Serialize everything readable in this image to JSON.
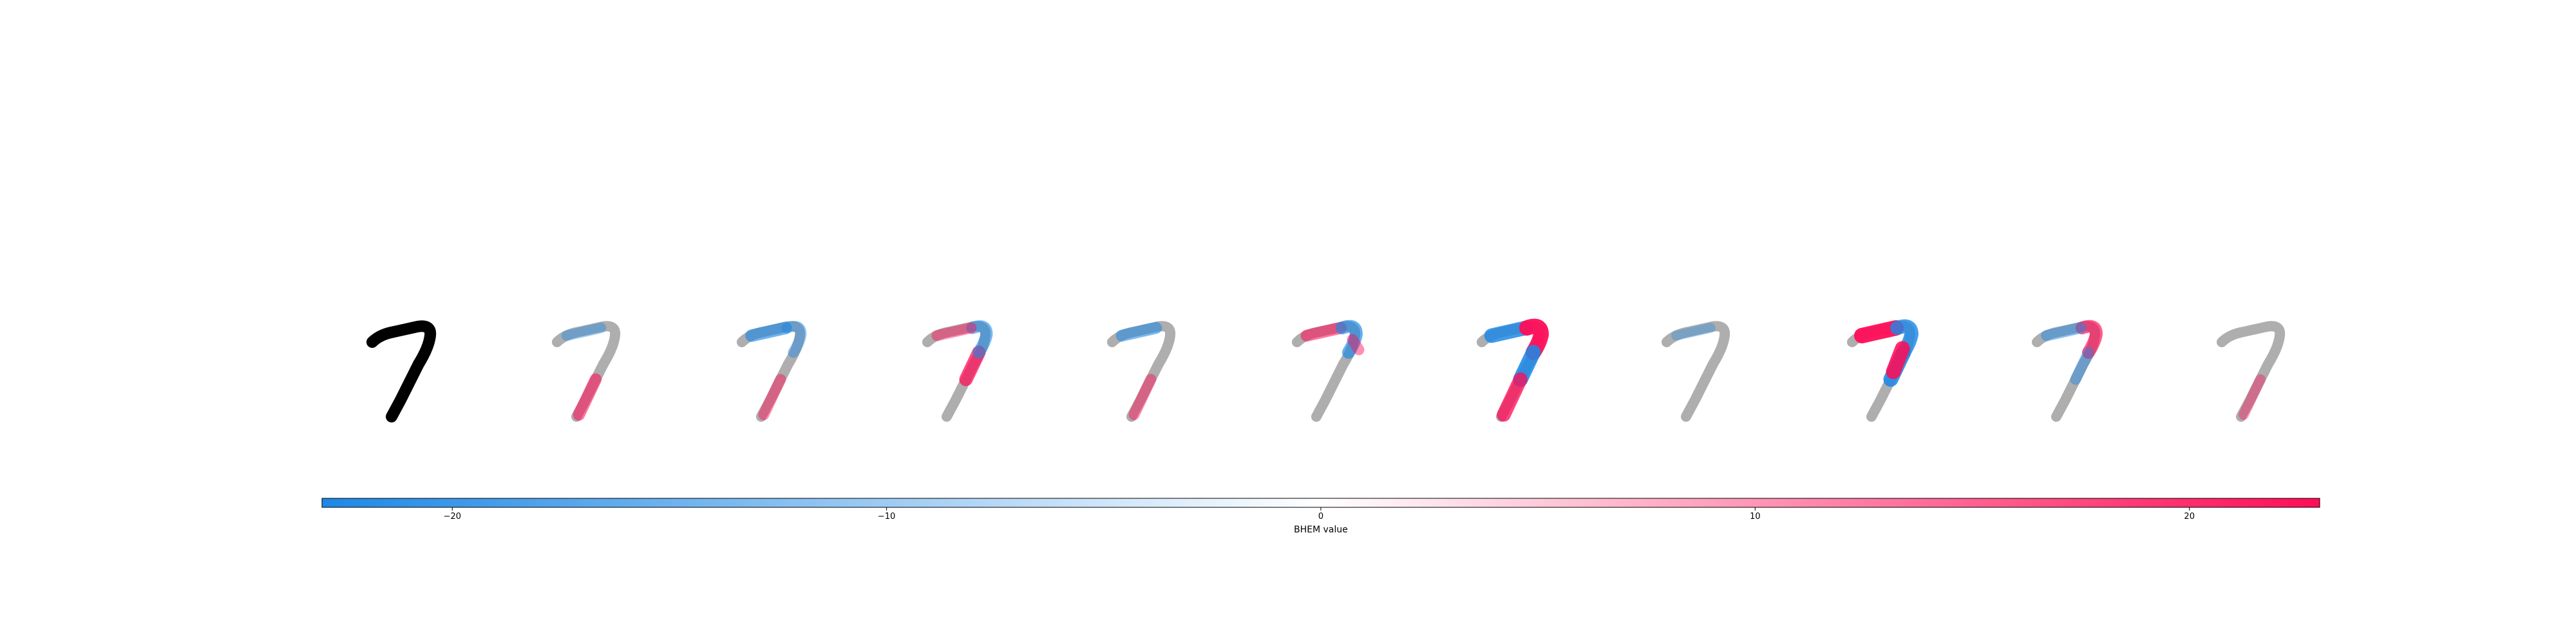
{
  "chart_data": {
    "type": "heatmap",
    "panels": [
      {
        "kind": "input",
        "digit": "7"
      },
      {
        "kind": "attribution",
        "highlights": [
          {
            "part": "stem-lower",
            "sign": 1,
            "strength": 0.45
          },
          {
            "part": "bar-left",
            "sign": -1,
            "strength": 0.25
          }
        ]
      },
      {
        "kind": "attribution",
        "highlights": [
          {
            "part": "bar-left",
            "sign": -1,
            "strength": 0.55
          },
          {
            "part": "hook",
            "sign": -1,
            "strength": 0.3
          },
          {
            "part": "stem-lower",
            "sign": 1,
            "strength": 0.3
          }
        ]
      },
      {
        "kind": "attribution",
        "highlights": [
          {
            "part": "stem-upper",
            "sign": 1,
            "strength": 0.7
          },
          {
            "part": "hook",
            "sign": -1,
            "strength": 0.5
          },
          {
            "part": "bar-left",
            "sign": 1,
            "strength": 0.3
          }
        ]
      },
      {
        "kind": "attribution",
        "highlights": [
          {
            "part": "bar-left",
            "sign": -1,
            "strength": 0.45
          },
          {
            "part": "stem-lower",
            "sign": 1,
            "strength": 0.3
          }
        ]
      },
      {
        "kind": "attribution",
        "highlights": [
          {
            "part": "bar-left",
            "sign": 1,
            "strength": 0.45
          },
          {
            "part": "hook",
            "sign": -1,
            "strength": 0.6
          },
          {
            "part": "right-blob",
            "sign": 1,
            "strength": 0.3
          }
        ]
      },
      {
        "kind": "attribution",
        "highlights": [
          {
            "part": "bar-left",
            "sign": -1,
            "strength": 0.85
          },
          {
            "part": "hook",
            "sign": 1,
            "strength": 1.0
          },
          {
            "part": "stem-upper",
            "sign": -1,
            "strength": 0.9
          },
          {
            "part": "stem-lower",
            "sign": 1,
            "strength": 0.75
          }
        ]
      },
      {
        "kind": "attribution",
        "highlights": [
          {
            "part": "bar-left",
            "sign": -1,
            "strength": 0.15
          }
        ]
      },
      {
        "kind": "attribution",
        "highlights": [
          {
            "part": "bar-left",
            "sign": 1,
            "strength": 1.0
          },
          {
            "part": "hook",
            "sign": -1,
            "strength": 0.8
          },
          {
            "part": "stem-upper",
            "sign": -1,
            "strength": 0.9
          },
          {
            "part": "center",
            "sign": 1,
            "strength": 0.9
          }
        ]
      },
      {
        "kind": "attribution",
        "highlights": [
          {
            "part": "hook",
            "sign": 1,
            "strength": 0.6
          },
          {
            "part": "bar-left",
            "sign": -1,
            "strength": 0.35
          },
          {
            "part": "stem-upper",
            "sign": -1,
            "strength": 0.3
          }
        ]
      },
      {
        "kind": "attribution",
        "highlights": [
          {
            "part": "stem-lower",
            "sign": 1,
            "strength": 0.2
          }
        ]
      }
    ],
    "colorbar": {
      "label": "BHEM value",
      "range": [
        -23,
        23
      ],
      "ticks": [
        -20,
        -10,
        0,
        10,
        20
      ],
      "tick_labels": [
        "−20",
        "−10",
        "0",
        "10",
        "20"
      ],
      "color_negative": "#1e88e5",
      "color_zero": "#ffffff",
      "color_positive": "#ff0d57"
    }
  },
  "colors": {
    "digit_input": "#000000",
    "digit_background_gray": "#aaaaaa",
    "negative": "#1e88e5",
    "positive": "#ff0d57"
  }
}
